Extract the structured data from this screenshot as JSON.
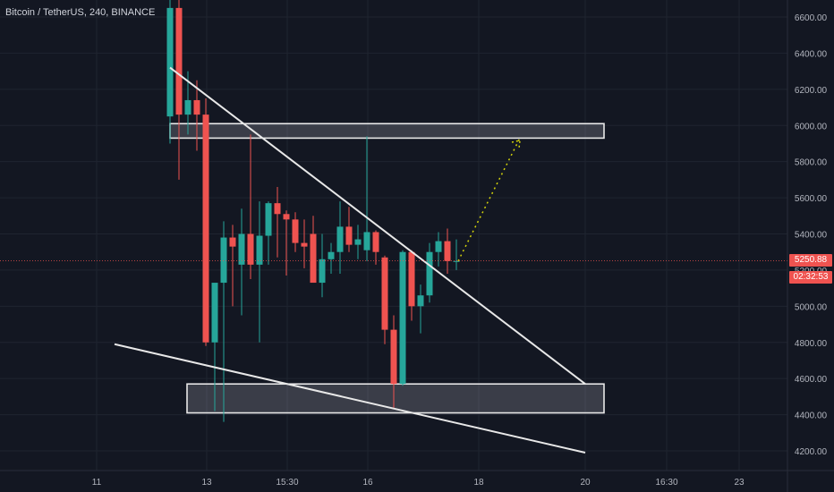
{
  "header": {
    "symbol": "Bitcoin / TetherUS, 240, BINANCE"
  },
  "price_axis": {
    "ticks": [
      "6600.00",
      "6400.00",
      "6200.00",
      "6000.00",
      "5800.00",
      "5600.00",
      "5400.00",
      "5200.00",
      "5000.00",
      "4800.00",
      "4600.00",
      "4400.00",
      "4200.00"
    ],
    "last_price": "5250.88",
    "countdown": "02:32:53"
  },
  "time_axis": {
    "ticks": [
      "11",
      "13",
      "15:30",
      "16",
      "18",
      "20",
      "16:30",
      "23"
    ]
  },
  "colors": {
    "background": "#131722",
    "up": "#26a69a",
    "down": "#ef5350",
    "grid": "#1f2430",
    "drawing": "#e8e8e8",
    "projection": "#d4d40a"
  },
  "chart_data": {
    "type": "candlestick",
    "symbol": "Bitcoin / TetherUS, 240, BINANCE",
    "ylim": [
      4100,
      6700
    ],
    "x_ticks": [
      "11",
      "13",
      "15:30",
      "16",
      "18",
      "20",
      "16:30",
      "23"
    ],
    "last_price": 5250.88,
    "candles": [
      {
        "o": 6050,
        "h": 6720,
        "l": 5900,
        "c": 6650
      },
      {
        "o": 6650,
        "h": 6700,
        "l": 5700,
        "c": 6060
      },
      {
        "o": 6060,
        "h": 6300,
        "l": 5950,
        "c": 6140
      },
      {
        "o": 6140,
        "h": 6250,
        "l": 5860,
        "c": 6060
      },
      {
        "o": 6060,
        "h": 6150,
        "l": 4780,
        "c": 4800
      },
      {
        "o": 4800,
        "h": 5120,
        "l": 4420,
        "c": 5130
      },
      {
        "o": 5130,
        "h": 5470,
        "l": 4360,
        "c": 5380
      },
      {
        "o": 5380,
        "h": 5450,
        "l": 5000,
        "c": 5330
      },
      {
        "o": 5230,
        "h": 5540,
        "l": 4950,
        "c": 5400
      },
      {
        "o": 5400,
        "h": 5950,
        "l": 5150,
        "c": 5230
      },
      {
        "o": 5230,
        "h": 5580,
        "l": 4800,
        "c": 5390
      },
      {
        "o": 5390,
        "h": 5580,
        "l": 5230,
        "c": 5570
      },
      {
        "o": 5570,
        "h": 5660,
        "l": 5270,
        "c": 5510
      },
      {
        "o": 5510,
        "h": 5530,
        "l": 5170,
        "c": 5480
      },
      {
        "o": 5480,
        "h": 5520,
        "l": 5300,
        "c": 5350
      },
      {
        "o": 5350,
        "h": 5480,
        "l": 5210,
        "c": 5330
      },
      {
        "o": 5400,
        "h": 5500,
        "l": 5150,
        "c": 5130
      },
      {
        "o": 5130,
        "h": 5400,
        "l": 5050,
        "c": 5260
      },
      {
        "o": 5260,
        "h": 5350,
        "l": 5180,
        "c": 5300
      },
      {
        "o": 5300,
        "h": 5580,
        "l": 5180,
        "c": 5440
      },
      {
        "o": 5440,
        "h": 5550,
        "l": 5300,
        "c": 5340
      },
      {
        "o": 5340,
        "h": 5450,
        "l": 5260,
        "c": 5370
      },
      {
        "o": 5310,
        "h": 5940,
        "l": 5250,
        "c": 5410
      },
      {
        "o": 5410,
        "h": 5420,
        "l": 5230,
        "c": 5300
      },
      {
        "o": 5270,
        "h": 5280,
        "l": 4790,
        "c": 4870
      },
      {
        "o": 4870,
        "h": 4950,
        "l": 4430,
        "c": 4570
      },
      {
        "o": 4570,
        "h": 5310,
        "l": 4560,
        "c": 5300
      },
      {
        "o": 5300,
        "h": 5310,
        "l": 4920,
        "c": 5000
      },
      {
        "o": 5000,
        "h": 5120,
        "l": 4850,
        "c": 5060
      },
      {
        "o": 5060,
        "h": 5350,
        "l": 5020,
        "c": 5300
      },
      {
        "o": 5300,
        "h": 5410,
        "l": 5220,
        "c": 5360
      },
      {
        "o": 5360,
        "h": 5430,
        "l": 5180,
        "c": 5250
      },
      {
        "o": 5250,
        "h": 5370,
        "l": 5200,
        "c": 5250
      }
    ],
    "zones": [
      {
        "name": "resistance",
        "top": 6010,
        "bottom": 5930
      },
      {
        "name": "support",
        "top": 4570,
        "bottom": 4410
      }
    ],
    "trendlines": [
      {
        "name": "descending",
        "from": 6320,
        "to": 4570
      },
      {
        "name": "lower",
        "from": 4790,
        "to": 4190
      }
    ],
    "projection": {
      "from": 5250,
      "to": 5930
    }
  }
}
